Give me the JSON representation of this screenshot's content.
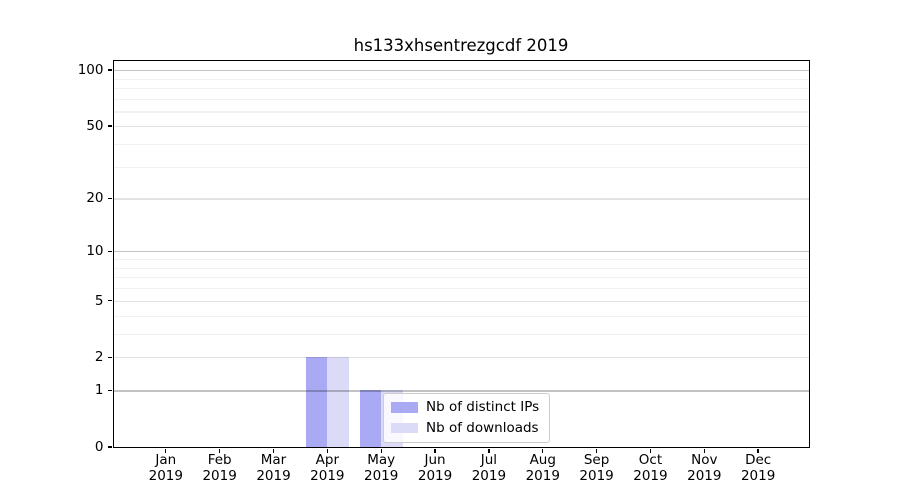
{
  "title": "hs133xhsentrezgcdf 2019",
  "legend": {
    "items": [
      {
        "label": "Nb of distinct IPs",
        "color": "#a9a9f4"
      },
      {
        "label": "Nb of downloads",
        "color": "#dbdbf8"
      }
    ]
  },
  "chart_data": {
    "type": "bar",
    "title": "hs133xhsentrezgcdf 2019",
    "categories": [
      "Jan",
      "Feb",
      "Mar",
      "Apr",
      "May",
      "Jun",
      "Jul",
      "Aug",
      "Sep",
      "Oct",
      "Nov",
      "Dec"
    ],
    "category_year": "2019",
    "series": [
      {
        "name": "Nb of distinct IPs",
        "color": "#a9a9f4",
        "values": [
          0,
          0,
          0,
          2,
          1,
          0,
          0,
          0,
          0,
          0,
          0,
          0
        ]
      },
      {
        "name": "Nb of downloads",
        "color": "#dbdbf8",
        "values": [
          0,
          0,
          0,
          2,
          1,
          0,
          0,
          0,
          0,
          0,
          0,
          0
        ]
      }
    ],
    "xlabel": "",
    "ylabel": "",
    "yscale": "log1p",
    "ylim": [
      0,
      112
    ],
    "yticks_labeled": [
      0,
      1,
      2,
      5,
      10,
      20,
      50,
      100
    ],
    "gridlines_major": [
      1,
      10,
      100
    ],
    "gridlines_mid": [
      2,
      5,
      20,
      50
    ],
    "gridlines_minor": [
      3,
      4,
      6,
      7,
      8,
      9,
      30,
      40,
      60,
      70,
      80,
      90
    ],
    "grid": true,
    "legend_position": "lower-center",
    "bar_group_width_frac": 0.8
  }
}
